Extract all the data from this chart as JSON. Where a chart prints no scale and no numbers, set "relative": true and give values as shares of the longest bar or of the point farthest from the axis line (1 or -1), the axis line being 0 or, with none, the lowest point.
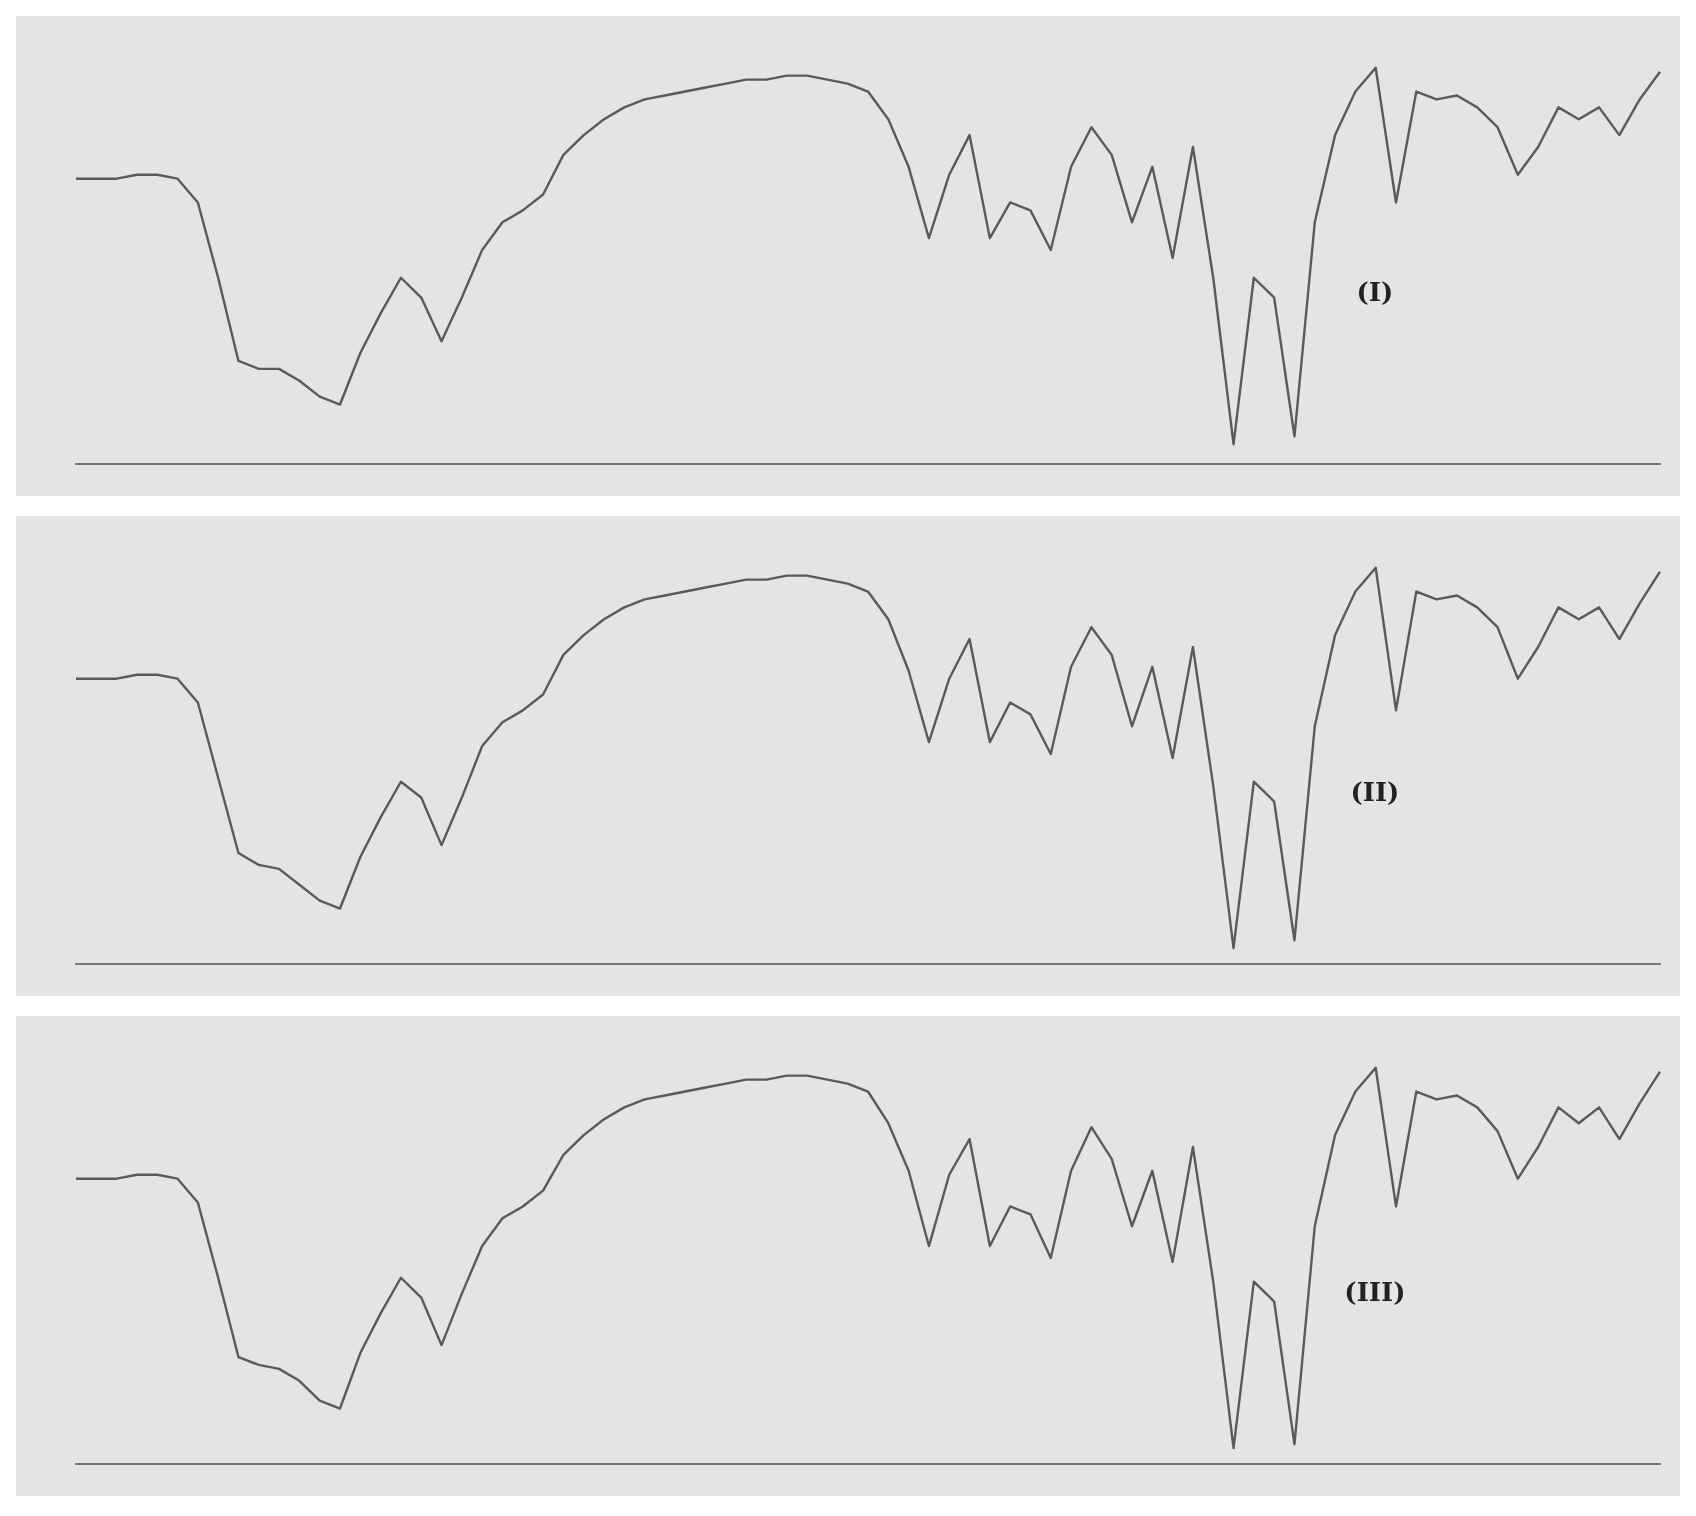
{
  "chart_data": [
    {
      "type": "line",
      "relative": true,
      "tick_labels": false,
      "grid": false,
      "color": "#5a5a5a",
      "annotations": [
        "(I)"
      ],
      "categories": [
        null,
        null,
        null,
        null,
        null,
        null,
        null,
        null,
        null,
        null,
        null,
        null,
        null,
        null,
        null,
        null,
        null,
        null,
        null,
        null,
        null,
        null,
        null,
        null,
        null,
        null,
        null,
        null,
        null,
        null,
        null,
        null,
        null,
        null,
        null,
        null,
        null,
        null,
        null,
        null,
        null,
        null,
        null,
        null,
        null,
        null,
        null,
        null,
        null,
        null,
        null,
        null,
        null,
        null,
        null,
        null,
        null,
        null,
        null,
        null,
        null,
        null,
        null,
        null,
        null,
        null,
        null,
        null,
        null,
        null,
        null,
        null,
        null,
        null,
        null,
        null,
        null,
        null,
        null
      ],
      "values": [
        0.72,
        0.72,
        0.72,
        0.73,
        0.73,
        0.72,
        0.66,
        0.47,
        0.26,
        0.24,
        0.24,
        0.21,
        0.17,
        0.15,
        0.28,
        0.38,
        0.47,
        0.42,
        0.31,
        0.42,
        0.54,
        0.61,
        0.64,
        0.68,
        0.78,
        0.83,
        0.87,
        0.9,
        0.92,
        0.93,
        0.94,
        0.95,
        0.96,
        0.97,
        0.97,
        0.98,
        0.98,
        0.97,
        0.96,
        0.94,
        0.87,
        0.75,
        0.57,
        0.73,
        0.83,
        0.57,
        0.66,
        0.64,
        0.54,
        0.75,
        0.85,
        0.78,
        0.61,
        0.75,
        0.52,
        0.8,
        0.47,
        0.05,
        0.47,
        0.42,
        0.07,
        0.61,
        0.83,
        0.94,
        1,
        0.66,
        0.94,
        0.92,
        0.93,
        0.9,
        0.85,
        0.73,
        0.8,
        0.9,
        0.87,
        0.9,
        0.83,
        0.92,
        0.99
      ]
    },
    {
      "type": "line",
      "relative": true,
      "tick_labels": false,
      "grid": false,
      "color": "#5a5a5a",
      "annotations": [
        "(II)"
      ],
      "categories": [
        null,
        null,
        null,
        null,
        null,
        null,
        null,
        null,
        null,
        null,
        null,
        null,
        null,
        null,
        null,
        null,
        null,
        null,
        null,
        null,
        null,
        null,
        null,
        null,
        null,
        null,
        null,
        null,
        null,
        null,
        null,
        null,
        null,
        null,
        null,
        null,
        null,
        null,
        null,
        null,
        null,
        null,
        null,
        null,
        null,
        null,
        null,
        null,
        null,
        null,
        null,
        null,
        null,
        null,
        null,
        null,
        null,
        null,
        null,
        null,
        null,
        null,
        null,
        null,
        null,
        null,
        null,
        null,
        null,
        null,
        null,
        null,
        null,
        null,
        null,
        null,
        null,
        null,
        null
      ],
      "values": [
        0.72,
        0.72,
        0.72,
        0.73,
        0.73,
        0.72,
        0.66,
        0.47,
        0.28,
        0.25,
        0.24,
        0.2,
        0.16,
        0.14,
        0.27,
        0.37,
        0.46,
        0.42,
        0.3,
        0.42,
        0.55,
        0.61,
        0.64,
        0.68,
        0.78,
        0.83,
        0.87,
        0.9,
        0.92,
        0.93,
        0.94,
        0.95,
        0.96,
        0.97,
        0.97,
        0.98,
        0.98,
        0.97,
        0.96,
        0.94,
        0.87,
        0.74,
        0.56,
        0.72,
        0.82,
        0.56,
        0.66,
        0.63,
        0.53,
        0.75,
        0.85,
        0.78,
        0.6,
        0.75,
        0.52,
        0.8,
        0.45,
        0.04,
        0.46,
        0.41,
        0.06,
        0.6,
        0.83,
        0.94,
        1,
        0.64,
        0.94,
        0.92,
        0.93,
        0.9,
        0.85,
        0.72,
        0.8,
        0.9,
        0.87,
        0.9,
        0.82,
        0.91,
        0.99
      ]
    },
    {
      "type": "line",
      "relative": true,
      "tick_labels": false,
      "grid": false,
      "color": "#5a5a5a",
      "annotations": [
        "(III)"
      ],
      "categories": [
        null,
        null,
        null,
        null,
        null,
        null,
        null,
        null,
        null,
        null,
        null,
        null,
        null,
        null,
        null,
        null,
        null,
        null,
        null,
        null,
        null,
        null,
        null,
        null,
        null,
        null,
        null,
        null,
        null,
        null,
        null,
        null,
        null,
        null,
        null,
        null,
        null,
        null,
        null,
        null,
        null,
        null,
        null,
        null,
        null,
        null,
        null,
        null,
        null,
        null,
        null,
        null,
        null,
        null,
        null,
        null,
        null,
        null,
        null,
        null,
        null,
        null,
        null,
        null,
        null,
        null,
        null,
        null,
        null,
        null,
        null,
        null,
        null,
        null,
        null,
        null,
        null,
        null,
        null
      ],
      "values": [
        0.72,
        0.72,
        0.72,
        0.73,
        0.73,
        0.72,
        0.66,
        0.47,
        0.27,
        0.25,
        0.24,
        0.21,
        0.16,
        0.14,
        0.28,
        0.38,
        0.47,
        0.42,
        0.3,
        0.43,
        0.55,
        0.62,
        0.65,
        0.69,
        0.78,
        0.83,
        0.87,
        0.9,
        0.92,
        0.93,
        0.94,
        0.95,
        0.96,
        0.97,
        0.97,
        0.98,
        0.98,
        0.97,
        0.96,
        0.94,
        0.86,
        0.74,
        0.55,
        0.73,
        0.82,
        0.55,
        0.65,
        0.63,
        0.52,
        0.74,
        0.85,
        0.77,
        0.6,
        0.74,
        0.51,
        0.8,
        0.46,
        0.04,
        0.46,
        0.41,
        0.05,
        0.6,
        0.83,
        0.94,
        1,
        0.65,
        0.94,
        0.92,
        0.93,
        0.9,
        0.84,
        0.72,
        0.8,
        0.9,
        0.86,
        0.9,
        0.82,
        0.91,
        0.99
      ]
    }
  ]
}
